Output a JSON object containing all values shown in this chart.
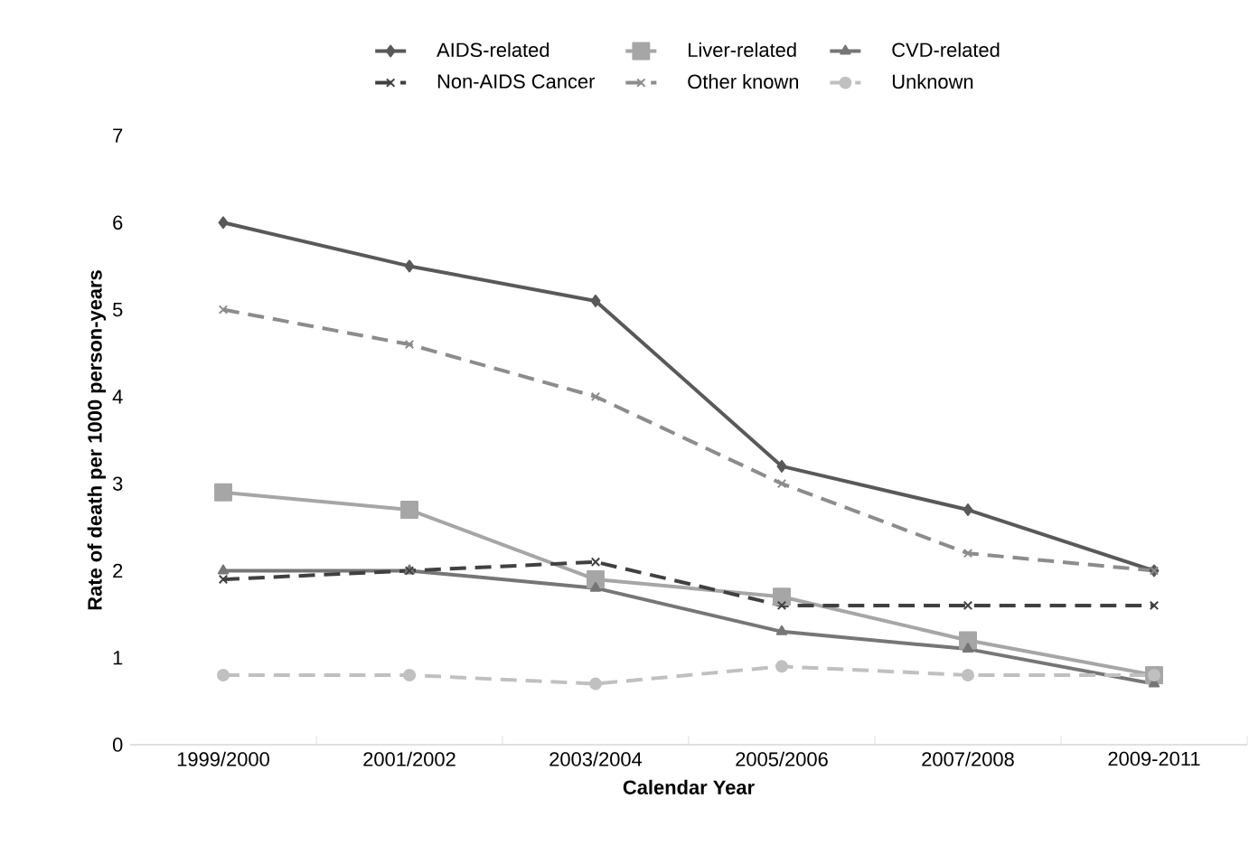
{
  "chart_data": {
    "type": "line",
    "xlabel": "Calendar Year",
    "ylabel": "Rate of death per 1000 person-years",
    "categories": [
      "1999/2000",
      "2001/2002",
      "2003/2004",
      "2005/2006",
      "2007/2008",
      "2009-2011"
    ],
    "ylim": [
      0,
      7
    ],
    "yticks": [
      0,
      1,
      2,
      3,
      4,
      5,
      6,
      7
    ],
    "grid": false,
    "legend": "top",
    "series": [
      {
        "name": "AIDS-related",
        "color": "#595959",
        "marker": "diamond",
        "line_style": "solid",
        "values": [
          6.0,
          5.5,
          5.1,
          3.2,
          2.7,
          2.0
        ]
      },
      {
        "name": "Liver-related",
        "color": "#a6a6a6",
        "marker": "square",
        "line_style": "solid",
        "values": [
          2.9,
          2.7,
          1.9,
          1.7,
          1.2,
          0.8
        ]
      },
      {
        "name": "CVD-related",
        "color": "#767676",
        "marker": "triangle",
        "line_style": "solid",
        "values": [
          2.0,
          2.0,
          1.8,
          1.3,
          1.1,
          0.7
        ]
      },
      {
        "name": "Non-AIDS Cancer",
        "color": "#404040",
        "marker": "cross",
        "line_style": "dashed",
        "values": [
          1.9,
          2.0,
          2.1,
          1.6,
          1.6,
          1.6
        ]
      },
      {
        "name": "Other known",
        "color": "#8c8c8c",
        "marker": "cross",
        "line_style": "dashed",
        "values": [
          5.0,
          4.6,
          4.0,
          3.0,
          2.2,
          2.0
        ]
      },
      {
        "name": "Unknown",
        "color": "#c0c0c0",
        "marker": "circle",
        "line_style": "dashed",
        "values": [
          0.8,
          0.8,
          0.7,
          0.9,
          0.8,
          0.8
        ]
      }
    ]
  }
}
